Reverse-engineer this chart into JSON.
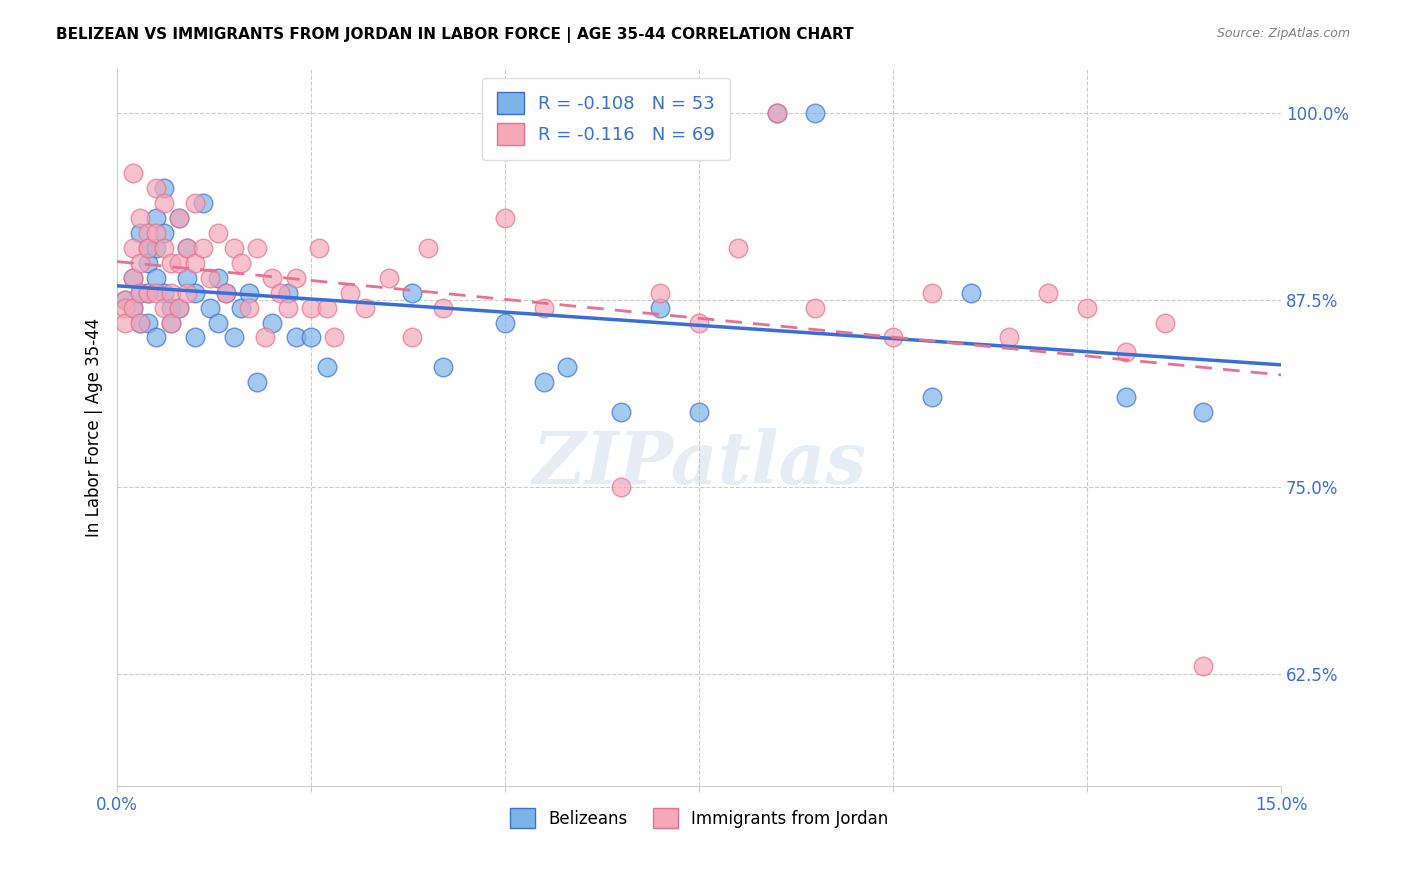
{
  "title": "BELIZEAN VS IMMIGRANTS FROM JORDAN IN LABOR FORCE | AGE 35-44 CORRELATION CHART",
  "source": "Source: ZipAtlas.com",
  "xlabel_bottom": "",
  "ylabel": "In Labor Force | Age 35-44",
  "xmin": 0.0,
  "xmax": 0.15,
  "ymin": 0.55,
  "ymax": 1.03,
  "xticks": [
    0.0,
    0.025,
    0.05,
    0.075,
    0.1,
    0.125,
    0.15
  ],
  "xticklabels": [
    "0.0%",
    "",
    "",
    "",
    "",
    "",
    "15.0%"
  ],
  "yticks": [
    0.625,
    0.75,
    0.875,
    1.0
  ],
  "yticklabels": [
    "62.5%",
    "75.0%",
    "87.5%",
    "100.0%"
  ],
  "blue_color": "#7eb3e8",
  "pink_color": "#f4a8b8",
  "blue_line_color": "#3a6fd8",
  "pink_line_color": "#e87090",
  "legend_R_blue": "R = -0.108",
  "legend_N_blue": "N = 53",
  "legend_R_pink": "R = -0.116",
  "legend_N_pink": "N = 69",
  "watermark": "ZIPatlas",
  "blue_x": [
    0.001,
    0.002,
    0.002,
    0.003,
    0.003,
    0.003,
    0.004,
    0.004,
    0.004,
    0.004,
    0.005,
    0.005,
    0.005,
    0.005,
    0.006,
    0.006,
    0.006,
    0.007,
    0.007,
    0.008,
    0.008,
    0.009,
    0.009,
    0.01,
    0.01,
    0.011,
    0.012,
    0.013,
    0.013,
    0.014,
    0.015,
    0.016,
    0.017,
    0.018,
    0.02,
    0.022,
    0.023,
    0.025,
    0.027,
    0.038,
    0.042,
    0.05,
    0.055,
    0.058,
    0.065,
    0.07,
    0.075,
    0.085,
    0.09,
    0.105,
    0.11,
    0.13,
    0.14
  ],
  "blue_y": [
    0.875,
    0.89,
    0.87,
    0.92,
    0.88,
    0.86,
    0.91,
    0.9,
    0.88,
    0.86,
    0.93,
    0.91,
    0.89,
    0.85,
    0.95,
    0.92,
    0.88,
    0.87,
    0.86,
    0.93,
    0.87,
    0.91,
    0.89,
    0.88,
    0.85,
    0.94,
    0.87,
    0.89,
    0.86,
    0.88,
    0.85,
    0.87,
    0.88,
    0.82,
    0.86,
    0.88,
    0.85,
    0.85,
    0.83,
    0.88,
    0.83,
    0.86,
    0.82,
    0.83,
    0.8,
    0.87,
    0.8,
    1.0,
    1.0,
    0.81,
    0.88,
    0.81,
    0.8
  ],
  "pink_x": [
    0.001,
    0.001,
    0.001,
    0.002,
    0.002,
    0.002,
    0.002,
    0.003,
    0.003,
    0.003,
    0.003,
    0.004,
    0.004,
    0.004,
    0.005,
    0.005,
    0.005,
    0.006,
    0.006,
    0.006,
    0.007,
    0.007,
    0.007,
    0.008,
    0.008,
    0.008,
    0.009,
    0.009,
    0.01,
    0.01,
    0.011,
    0.012,
    0.013,
    0.014,
    0.015,
    0.016,
    0.017,
    0.018,
    0.019,
    0.02,
    0.021,
    0.022,
    0.023,
    0.025,
    0.026,
    0.027,
    0.028,
    0.03,
    0.032,
    0.035,
    0.038,
    0.04,
    0.042,
    0.05,
    0.055,
    0.065,
    0.07,
    0.075,
    0.08,
    0.085,
    0.09,
    0.1,
    0.105,
    0.115,
    0.12,
    0.125,
    0.13,
    0.135,
    0.14
  ],
  "pink_y": [
    0.875,
    0.87,
    0.86,
    0.96,
    0.91,
    0.89,
    0.87,
    0.93,
    0.9,
    0.88,
    0.86,
    0.92,
    0.91,
    0.88,
    0.95,
    0.92,
    0.88,
    0.94,
    0.91,
    0.87,
    0.9,
    0.88,
    0.86,
    0.93,
    0.9,
    0.87,
    0.91,
    0.88,
    0.94,
    0.9,
    0.91,
    0.89,
    0.92,
    0.88,
    0.91,
    0.9,
    0.87,
    0.91,
    0.85,
    0.89,
    0.88,
    0.87,
    0.89,
    0.87,
    0.91,
    0.87,
    0.85,
    0.88,
    0.87,
    0.89,
    0.85,
    0.91,
    0.87,
    0.93,
    0.87,
    0.75,
    0.88,
    0.86,
    0.91,
    1.0,
    0.87,
    0.85,
    0.88,
    0.85,
    0.88,
    0.87,
    0.84,
    0.86,
    0.63
  ]
}
